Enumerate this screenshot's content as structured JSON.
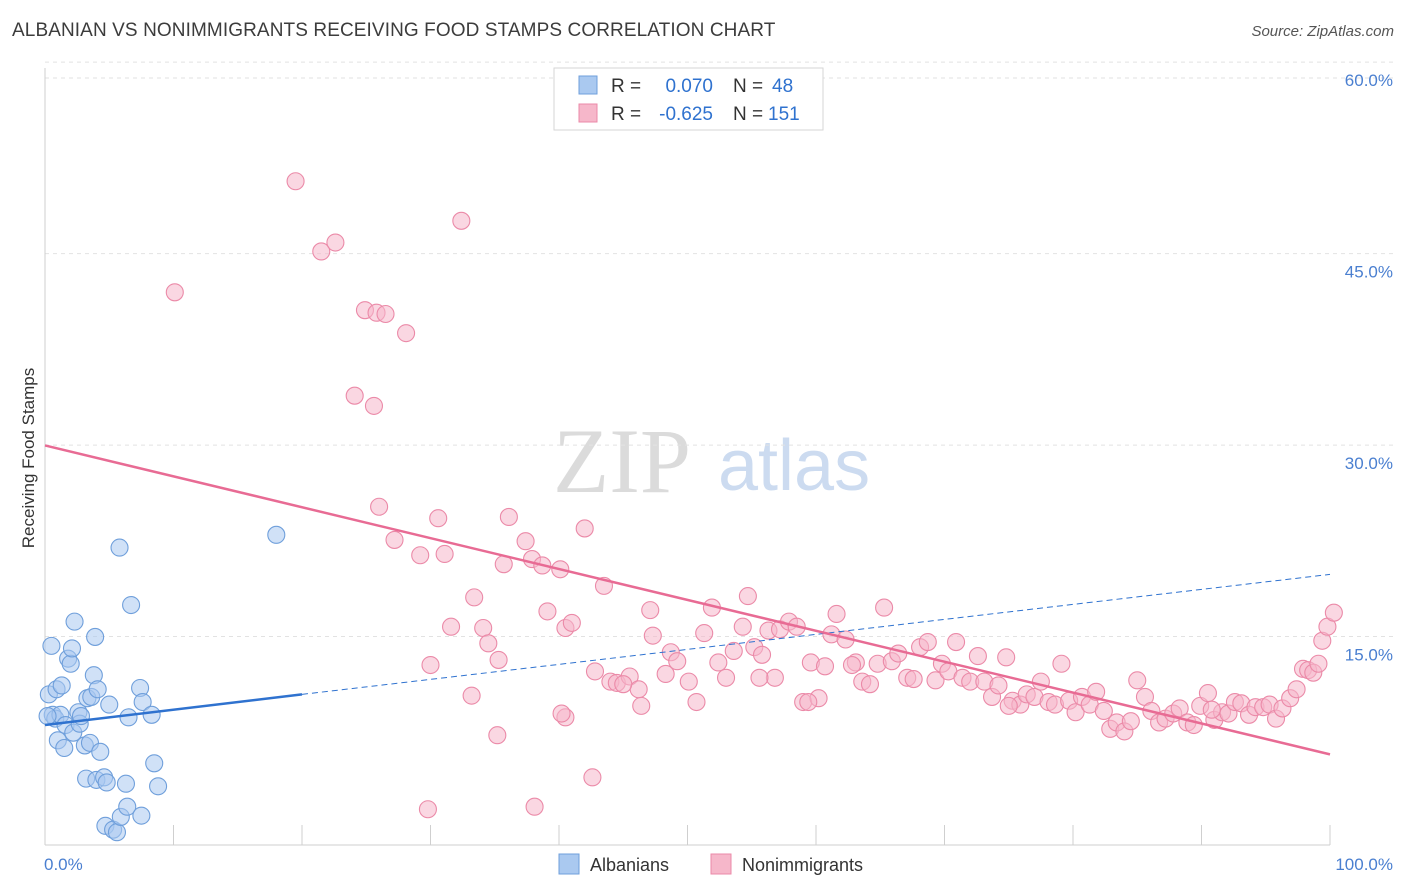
{
  "header": {
    "title": "ALBANIAN VS NONIMMIGRANTS RECEIVING FOOD STAMPS CORRELATION CHART",
    "source": "Source: ZipAtlas.com"
  },
  "watermark": {
    "part1": "ZIP",
    "part2": "atlas"
  },
  "chart_data": {
    "type": "scatter",
    "title": "ALBANIAN VS NONIMMIGRANTS RECEIVING FOOD STAMPS CORRELATION CHART",
    "ylabel": "Receiving Food Stamps",
    "xlabel": "",
    "xlim": [
      0,
      100
    ],
    "ylim": [
      0,
      62
    ],
    "x_tick_labels": [
      "0.0%",
      "100.0%"
    ],
    "y_ticks": [
      15,
      30,
      45,
      60
    ],
    "y_tick_labels": [
      "15.0%",
      "30.0%",
      "45.0%",
      "60.0%"
    ],
    "grid": "horizontal dashed",
    "legend_position": "top-center",
    "legend": [
      {
        "r_label": "R =",
        "r_value": "0.070",
        "n_label": "N =",
        "n_value": "48"
      },
      {
        "r_label": "R =",
        "r_value": "-0.625",
        "n_label": "N =",
        "n_value": "151"
      }
    ],
    "bottom_legend": [
      "Albanians",
      "Nonimmigrants"
    ],
    "colors": {
      "albanian_fill": "#aac9f0",
      "albanian_stroke": "#6f9fdb",
      "albanian_line": "#2f72cf",
      "nonimm_fill": "#f6b7ca",
      "nonimm_stroke": "#eb8aa8",
      "nonimm_line": "#e86b94",
      "tick_label": "#4a7fd0"
    },
    "series": [
      {
        "name": "Albanians",
        "trend": {
          "x0": 0,
          "y0": 9.4,
          "x1": 20,
          "y1": 11.8,
          "x_dash_end": 100,
          "y_dash_end": 21.2
        },
        "points": [
          [
            0.3,
            11.8
          ],
          [
            0.5,
            15.6
          ],
          [
            0.6,
            10.2
          ],
          [
            0.8,
            9.9
          ],
          [
            0.9,
            12.2
          ],
          [
            1.0,
            8.2
          ],
          [
            1.2,
            10.2
          ],
          [
            1.3,
            12.5
          ],
          [
            1.5,
            7.6
          ],
          [
            1.6,
            9.4
          ],
          [
            1.8,
            14.6
          ],
          [
            2.0,
            14.2
          ],
          [
            2.1,
            15.4
          ],
          [
            2.2,
            8.8
          ],
          [
            2.3,
            17.5
          ],
          [
            2.6,
            10.4
          ],
          [
            2.7,
            9.5
          ],
          [
            2.8,
            10.1
          ],
          [
            3.1,
            7.8
          ],
          [
            3.2,
            5.2
          ],
          [
            3.3,
            11.5
          ],
          [
            3.5,
            8.0
          ],
          [
            3.6,
            11.6
          ],
          [
            3.8,
            13.3
          ],
          [
            3.9,
            16.3
          ],
          [
            4.0,
            5.1
          ],
          [
            4.1,
            12.2
          ],
          [
            4.3,
            7.3
          ],
          [
            4.6,
            5.3
          ],
          [
            4.7,
            1.5
          ],
          [
            4.8,
            4.9
          ],
          [
            5.0,
            11.0
          ],
          [
            5.3,
            1.2
          ],
          [
            5.6,
            1.0
          ],
          [
            5.8,
            23.3
          ],
          [
            5.9,
            2.2
          ],
          [
            6.3,
            4.8
          ],
          [
            6.4,
            3.0
          ],
          [
            6.5,
            10.0
          ],
          [
            6.7,
            18.8
          ],
          [
            7.4,
            12.3
          ],
          [
            7.5,
            2.3
          ],
          [
            7.6,
            11.2
          ],
          [
            8.3,
            10.2
          ],
          [
            8.5,
            6.4
          ],
          [
            8.8,
            4.6
          ],
          [
            18.0,
            24.3
          ],
          [
            0.2,
            10.1
          ]
        ]
      },
      {
        "name": "Nonimmigrants",
        "trend": {
          "x0": 0,
          "y0": 31.3,
          "x1": 100,
          "y1": 7.1
        },
        "points": [
          [
            10.1,
            43.3
          ],
          [
            19.5,
            52.0
          ],
          [
            21.5,
            46.5
          ],
          [
            22.6,
            47.2
          ],
          [
            24.1,
            35.2
          ],
          [
            24.9,
            41.9
          ],
          [
            25.8,
            41.7
          ],
          [
            26.5,
            41.6
          ],
          [
            25.6,
            34.4
          ],
          [
            28.1,
            40.1
          ],
          [
            26.0,
            26.5
          ],
          [
            27.2,
            23.9
          ],
          [
            29.2,
            22.7
          ],
          [
            30.6,
            25.6
          ],
          [
            31.1,
            22.8
          ],
          [
            32.4,
            48.9
          ],
          [
            33.4,
            19.4
          ],
          [
            34.1,
            17.0
          ],
          [
            34.5,
            15.8
          ],
          [
            35.3,
            14.5
          ],
          [
            35.7,
            22.0
          ],
          [
            36.1,
            25.7
          ],
          [
            37.4,
            23.8
          ],
          [
            37.9,
            22.4
          ],
          [
            38.7,
            21.9
          ],
          [
            39.1,
            18.3
          ],
          [
            40.1,
            21.6
          ],
          [
            40.5,
            17.0
          ],
          [
            41.0,
            17.4
          ],
          [
            42.0,
            24.8
          ],
          [
            42.8,
            13.6
          ],
          [
            43.5,
            20.3
          ],
          [
            44.0,
            12.8
          ],
          [
            44.5,
            12.7
          ],
          [
            45.5,
            13.2
          ],
          [
            46.2,
            12.2
          ],
          [
            47.1,
            18.4
          ],
          [
            47.3,
            16.4
          ],
          [
            48.3,
            13.4
          ],
          [
            48.7,
            15.1
          ],
          [
            49.2,
            14.4
          ],
          [
            50.1,
            12.8
          ],
          [
            50.7,
            11.2
          ],
          [
            51.3,
            16.6
          ],
          [
            51.9,
            18.6
          ],
          [
            52.4,
            14.3
          ],
          [
            53.0,
            13.1
          ],
          [
            53.6,
            15.2
          ],
          [
            54.3,
            17.1
          ],
          [
            54.7,
            19.5
          ],
          [
            55.2,
            15.5
          ],
          [
            55.8,
            14.9
          ],
          [
            56.3,
            16.8
          ],
          [
            56.8,
            13.1
          ],
          [
            57.2,
            16.9
          ],
          [
            57.9,
            17.5
          ],
          [
            58.5,
            17.1
          ],
          [
            59.0,
            11.2
          ],
          [
            59.6,
            14.3
          ],
          [
            60.2,
            11.5
          ],
          [
            60.7,
            14.0
          ],
          [
            61.2,
            16.5
          ],
          [
            61.6,
            18.1
          ],
          [
            62.3,
            16.1
          ],
          [
            63.1,
            14.3
          ],
          [
            63.6,
            12.8
          ],
          [
            64.2,
            12.6
          ],
          [
            64.8,
            14.2
          ],
          [
            65.3,
            18.6
          ],
          [
            65.9,
            14.4
          ],
          [
            66.4,
            15.0
          ],
          [
            67.1,
            13.1
          ],
          [
            67.6,
            13.0
          ],
          [
            68.1,
            15.5
          ],
          [
            68.7,
            15.9
          ],
          [
            69.3,
            12.9
          ],
          [
            69.8,
            14.2
          ],
          [
            70.3,
            13.6
          ],
          [
            70.9,
            15.9
          ],
          [
            71.4,
            13.1
          ],
          [
            72.0,
            12.8
          ],
          [
            72.6,
            14.8
          ],
          [
            73.1,
            12.8
          ],
          [
            73.7,
            11.6
          ],
          [
            74.2,
            12.5
          ],
          [
            74.8,
            14.7
          ],
          [
            75.3,
            11.3
          ],
          [
            75.9,
            11.0
          ],
          [
            76.4,
            11.8
          ],
          [
            77.0,
            11.6
          ],
          [
            77.5,
            12.8
          ],
          [
            78.1,
            11.2
          ],
          [
            78.6,
            11.0
          ],
          [
            79.1,
            14.2
          ],
          [
            79.7,
            11.3
          ],
          [
            80.2,
            10.4
          ],
          [
            80.7,
            11.6
          ],
          [
            81.3,
            11.0
          ],
          [
            81.8,
            12.0
          ],
          [
            82.4,
            10.5
          ],
          [
            82.9,
            9.1
          ],
          [
            83.4,
            9.6
          ],
          [
            84.0,
            8.9
          ],
          [
            84.5,
            9.7
          ],
          [
            85.0,
            12.9
          ],
          [
            85.6,
            11.6
          ],
          [
            86.1,
            10.5
          ],
          [
            86.7,
            9.6
          ],
          [
            87.2,
            9.9
          ],
          [
            87.8,
            10.3
          ],
          [
            88.3,
            10.7
          ],
          [
            88.9,
            9.6
          ],
          [
            89.4,
            9.4
          ],
          [
            89.9,
            10.9
          ],
          [
            90.5,
            11.9
          ],
          [
            91.0,
            9.8
          ],
          [
            91.6,
            10.4
          ],
          [
            92.1,
            10.3
          ],
          [
            92.6,
            11.2
          ],
          [
            93.1,
            11.1
          ],
          [
            93.7,
            10.2
          ],
          [
            94.2,
            10.8
          ],
          [
            94.8,
            10.8
          ],
          [
            95.3,
            11.0
          ],
          [
            95.8,
            9.9
          ],
          [
            96.3,
            10.7
          ],
          [
            96.9,
            11.5
          ],
          [
            97.4,
            12.2
          ],
          [
            97.9,
            13.8
          ],
          [
            98.3,
            13.7
          ],
          [
            98.7,
            13.5
          ],
          [
            99.1,
            14.2
          ],
          [
            99.4,
            16.0
          ],
          [
            99.8,
            17.1
          ],
          [
            100.3,
            18.2
          ],
          [
            30.0,
            14.1
          ],
          [
            31.6,
            17.1
          ],
          [
            33.2,
            11.7
          ],
          [
            35.2,
            8.6
          ],
          [
            38.1,
            3.0
          ],
          [
            29.8,
            2.8
          ],
          [
            40.5,
            10.0
          ],
          [
            40.2,
            10.3
          ],
          [
            42.6,
            5.3
          ],
          [
            45.0,
            12.6
          ],
          [
            46.4,
            10.9
          ],
          [
            55.6,
            13.1
          ],
          [
            59.4,
            11.2
          ],
          [
            62.8,
            14.1
          ],
          [
            75.0,
            10.9
          ],
          [
            90.8,
            10.6
          ]
        ]
      }
    ]
  }
}
